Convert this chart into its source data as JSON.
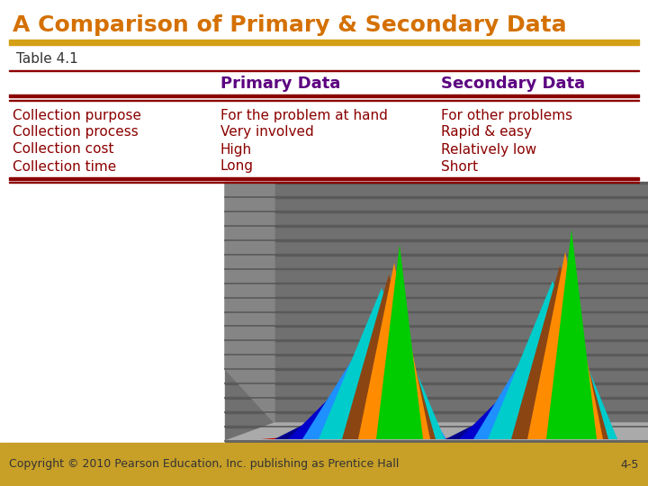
{
  "title": "A Comparison of Primary & Secondary Data",
  "title_color": "#D47000",
  "title_fontsize": 18,
  "subtitle": "Table 4.1",
  "subtitle_color": "#333333",
  "subtitle_fontsize": 11,
  "header_row": [
    "",
    "Primary Data",
    "Secondary Data"
  ],
  "header_color": "#5B0080",
  "header_fontsize": 13,
  "col1": [
    "Collection purpose",
    "Collection process",
    "Collection cost",
    "Collection time"
  ],
  "col2": [
    "For the problem at hand",
    "Very involved",
    "High",
    "Long"
  ],
  "col3": [
    "For other problems",
    "Rapid & easy",
    "Relatively low",
    "Short"
  ],
  "data_color": "#8B0000",
  "data_fontsize": 11,
  "line_color": "#8B0000",
  "orange_line_color": "#D4A017",
  "bg_color": "#FFFFFF",
  "bottom_bar_color": "#C8A028",
  "copyright_text": "Copyright © 2010 Pearson Education, Inc. publishing as Prentice Hall",
  "copyright_color": "#333333",
  "copyright_fontsize": 9,
  "page_number": "4-5",
  "page_number_color": "#333333",
  "page_number_fontsize": 9,
  "mountain_colors": [
    "#CC0000",
    "#000080",
    "#0000CC",
    "#1E90FF",
    "#00CCCC",
    "#8B4513",
    "#FF8C00",
    "#00CC00"
  ],
  "gray_bg": "#707070",
  "gray_stripe": "#5A5A5A",
  "gray_left_panel": "#909090"
}
